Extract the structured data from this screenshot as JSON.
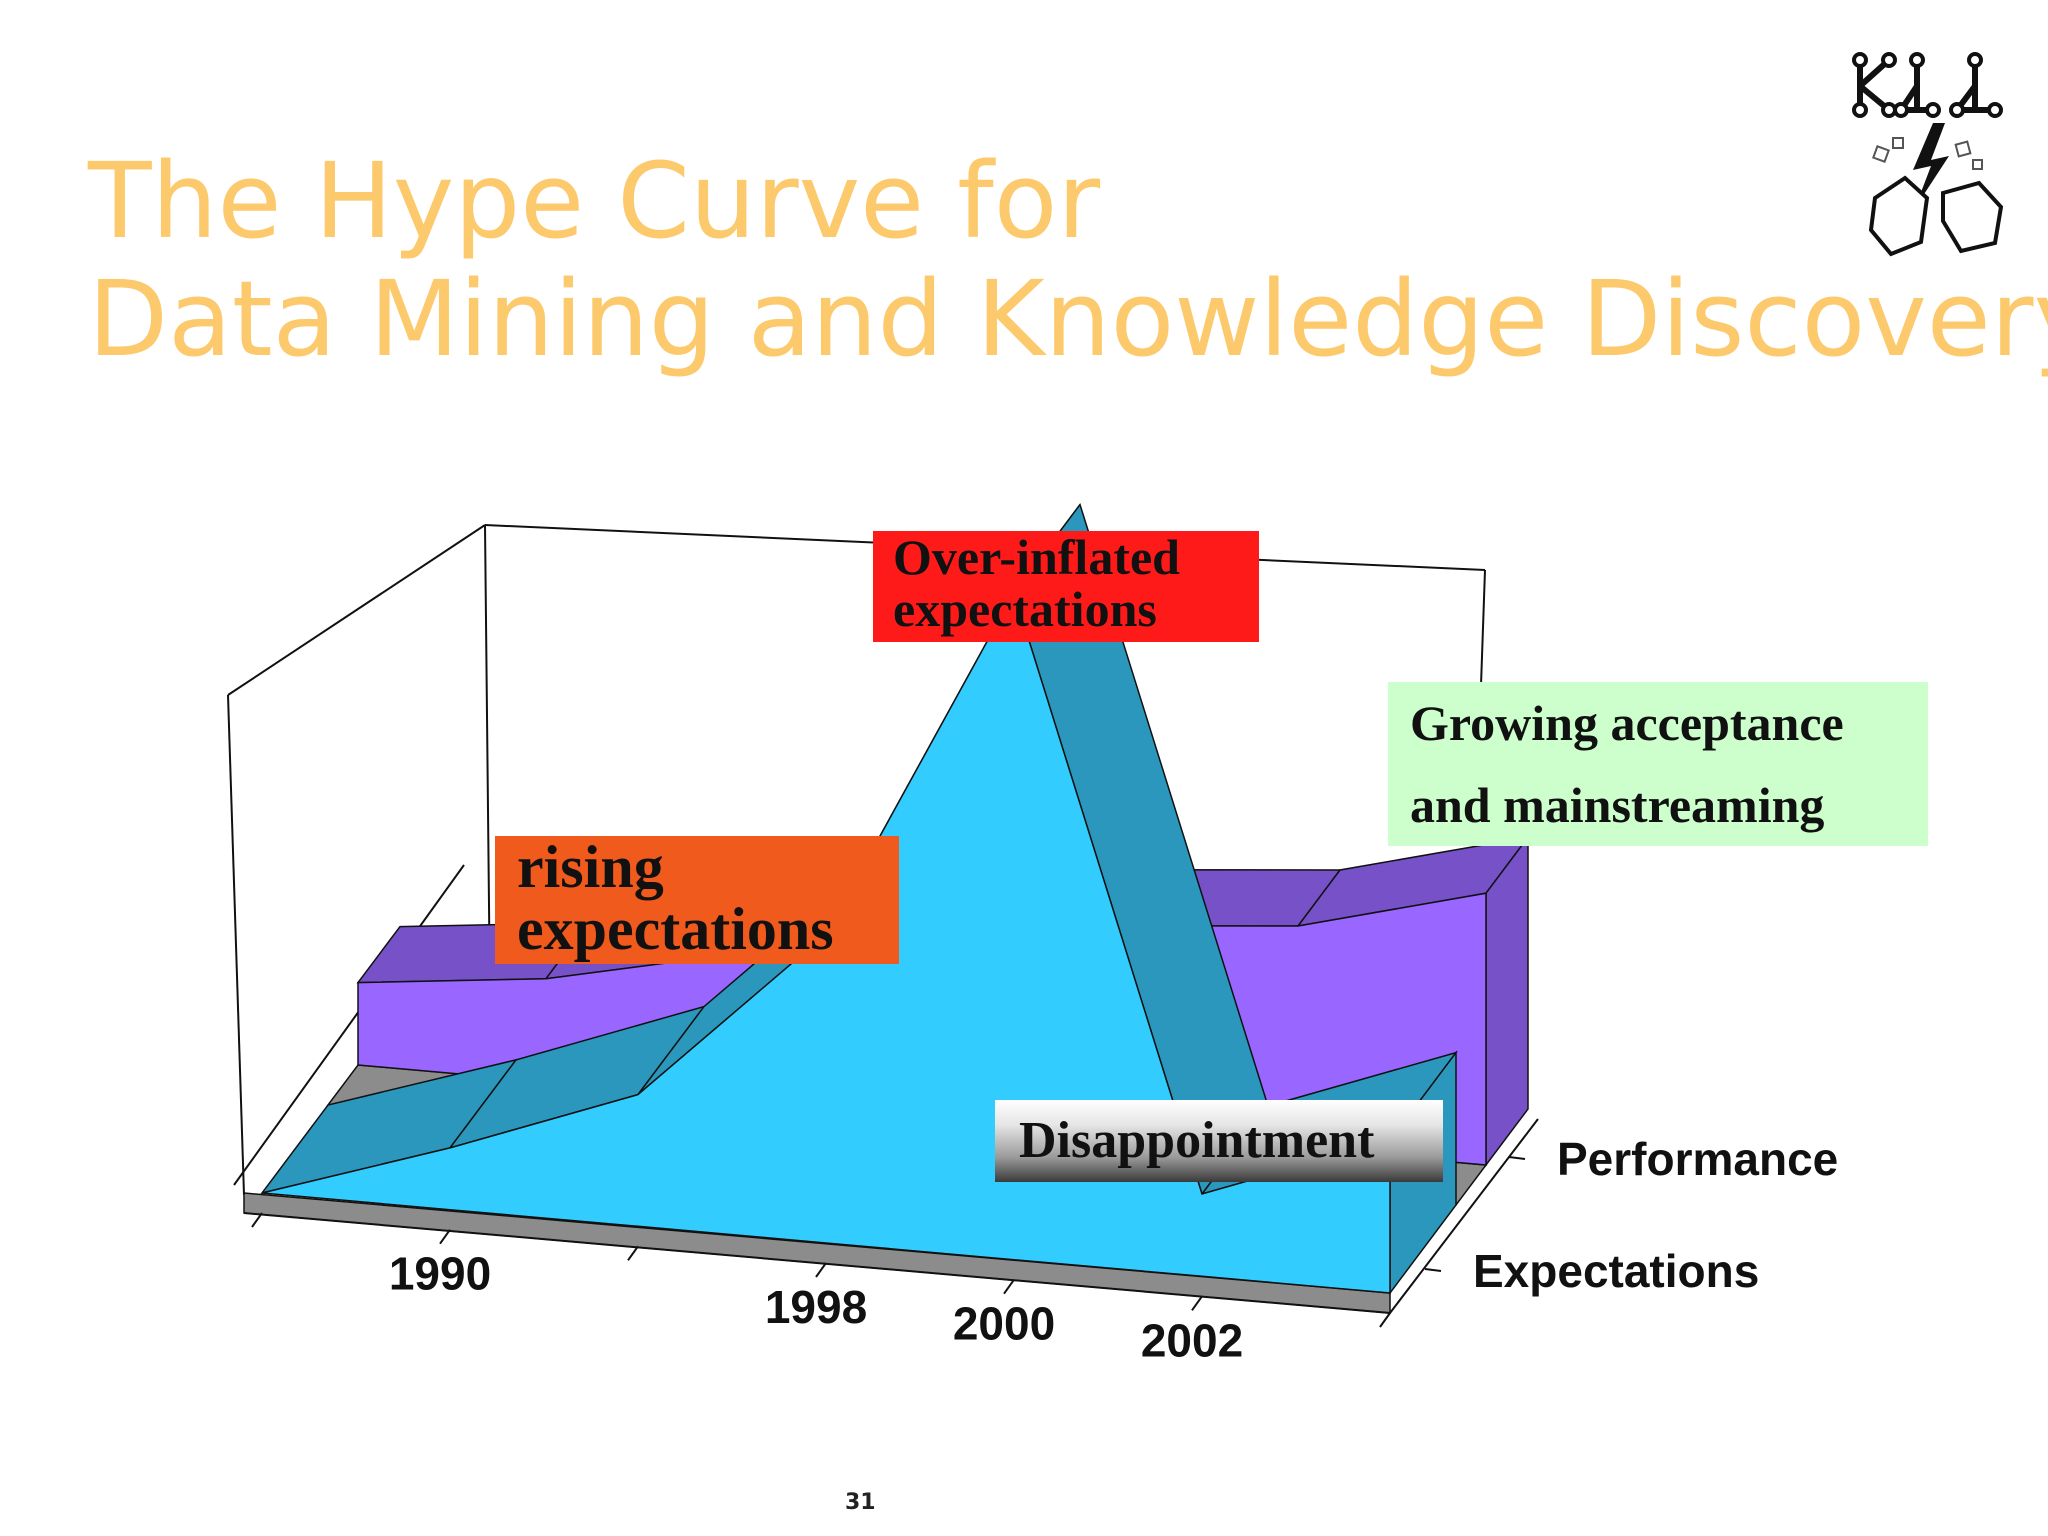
{
  "slide": {
    "title_line1": "The Hype Curve for",
    "title_line2": "Data Mining and Knowledge Discovery",
    "page_number": "31"
  },
  "logo": {
    "icon": "kdd-logo-icon",
    "text": "KDD"
  },
  "colors": {
    "title": "#fcc96d",
    "expectations_top": "#33ccff",
    "expectations_side": "#2b97bd",
    "performance_top": "#9966ff",
    "performance_side": "#7651c7",
    "floor": "#8c8c8c"
  },
  "callouts": {
    "over_inflated": {
      "line1": "Over-inflated",
      "line2": "expectations",
      "color": "#ff1a1a"
    },
    "rising": {
      "line1": "rising",
      "line2": "expectations",
      "color": "#f15a1d"
    },
    "growing": {
      "line1": "Growing acceptance",
      "line2": "and mainstreaming",
      "color": "#ccffcc"
    },
    "disappointment": {
      "text": "Disappointment"
    }
  },
  "chart_data": {
    "type": "area",
    "style": "3d",
    "title": "",
    "categories": [
      "",
      "1990",
      "",
      "1998",
      "2000",
      "2002",
      ""
    ],
    "series": [
      {
        "name": "Performance",
        "values": [
          2.0,
          2.5,
          3.5,
          4.3,
          5.0,
          5.4,
          6.6
        ],
        "color": "#9966ff"
      },
      {
        "name": "Expectations",
        "values": [
          0.0,
          1.5,
          3.2,
          7.5,
          16.2,
          2.0,
          3.7
        ],
        "color": "#33ccff"
      }
    ],
    "ylim": [
      0,
      17
    ],
    "grid": false,
    "legend": "none"
  }
}
